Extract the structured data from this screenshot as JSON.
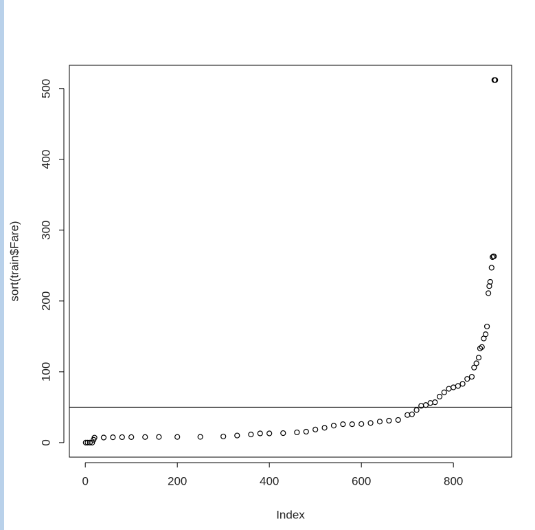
{
  "chart_data": {
    "type": "scatter",
    "x_label": "Index",
    "y_label": "sort(train$Fare)",
    "x": [
      1,
      5,
      10,
      15,
      18,
      20,
      40,
      60,
      80,
      100,
      130,
      160,
      200,
      250,
      300,
      330,
      360,
      380,
      400,
      430,
      460,
      480,
      500,
      520,
      540,
      560,
      580,
      600,
      620,
      640,
      660,
      680,
      700,
      710,
      720,
      730,
      740,
      750,
      760,
      770,
      780,
      790,
      800,
      810,
      820,
      830,
      840,
      845,
      850,
      855,
      858,
      862,
      866,
      870,
      873,
      876,
      878,
      880,
      883,
      885,
      887,
      888,
      889,
      890,
      891
    ],
    "y": [
      0,
      0,
      0,
      0,
      4,
      7,
      7.2,
      7.5,
      7.7,
      7.8,
      7.9,
      8,
      8.05,
      8.1,
      8.7,
      10,
      11.5,
      13,
      13,
      13.4,
      14.5,
      15.5,
      18.5,
      21,
      24,
      26,
      26,
      26.3,
      27.7,
      29.7,
      31,
      32,
      39,
      40,
      46,
      52,
      53,
      56,
      57,
      65,
      71,
      76,
      78,
      80,
      83,
      90,
      93,
      106,
      112,
      120,
      133,
      135,
      147,
      153,
      164,
      211,
      221,
      227,
      247,
      262,
      263,
      263,
      512,
      512,
      512
    ],
    "hline": 50,
    "xlim": [
      -34.6,
      926.6
    ],
    "ylim": [
      -20.5,
      532.8
    ],
    "xticks": [
      0,
      200,
      400,
      600,
      800
    ],
    "yticks": [
      0,
      100,
      200,
      300,
      400,
      500
    ],
    "color": "#000000"
  }
}
